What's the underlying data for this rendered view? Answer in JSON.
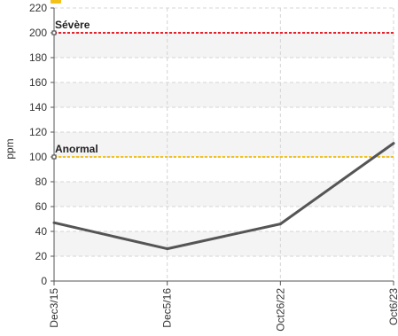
{
  "chart_data": {
    "type": "line",
    "ylabel": "ppm",
    "xlabel": "",
    "ylim": [
      0,
      220
    ],
    "yticks": [
      0,
      20,
      40,
      60,
      80,
      100,
      120,
      140,
      160,
      180,
      200,
      220
    ],
    "categories": [
      "Dec3/15",
      "Dec5/16",
      "Oct26/22",
      "Oct6/23"
    ],
    "series": [
      {
        "name": "",
        "values": [
          47,
          26,
          46,
          111
        ]
      }
    ],
    "thresholds": [
      {
        "label": "Sévère",
        "value": 200,
        "color": "#e8202a"
      },
      {
        "label": "Anormal",
        "value": 100,
        "color": "#f2c21b"
      }
    ],
    "grid": true,
    "series_color": "#555555",
    "header_icon_color": "#f2c21b"
  }
}
